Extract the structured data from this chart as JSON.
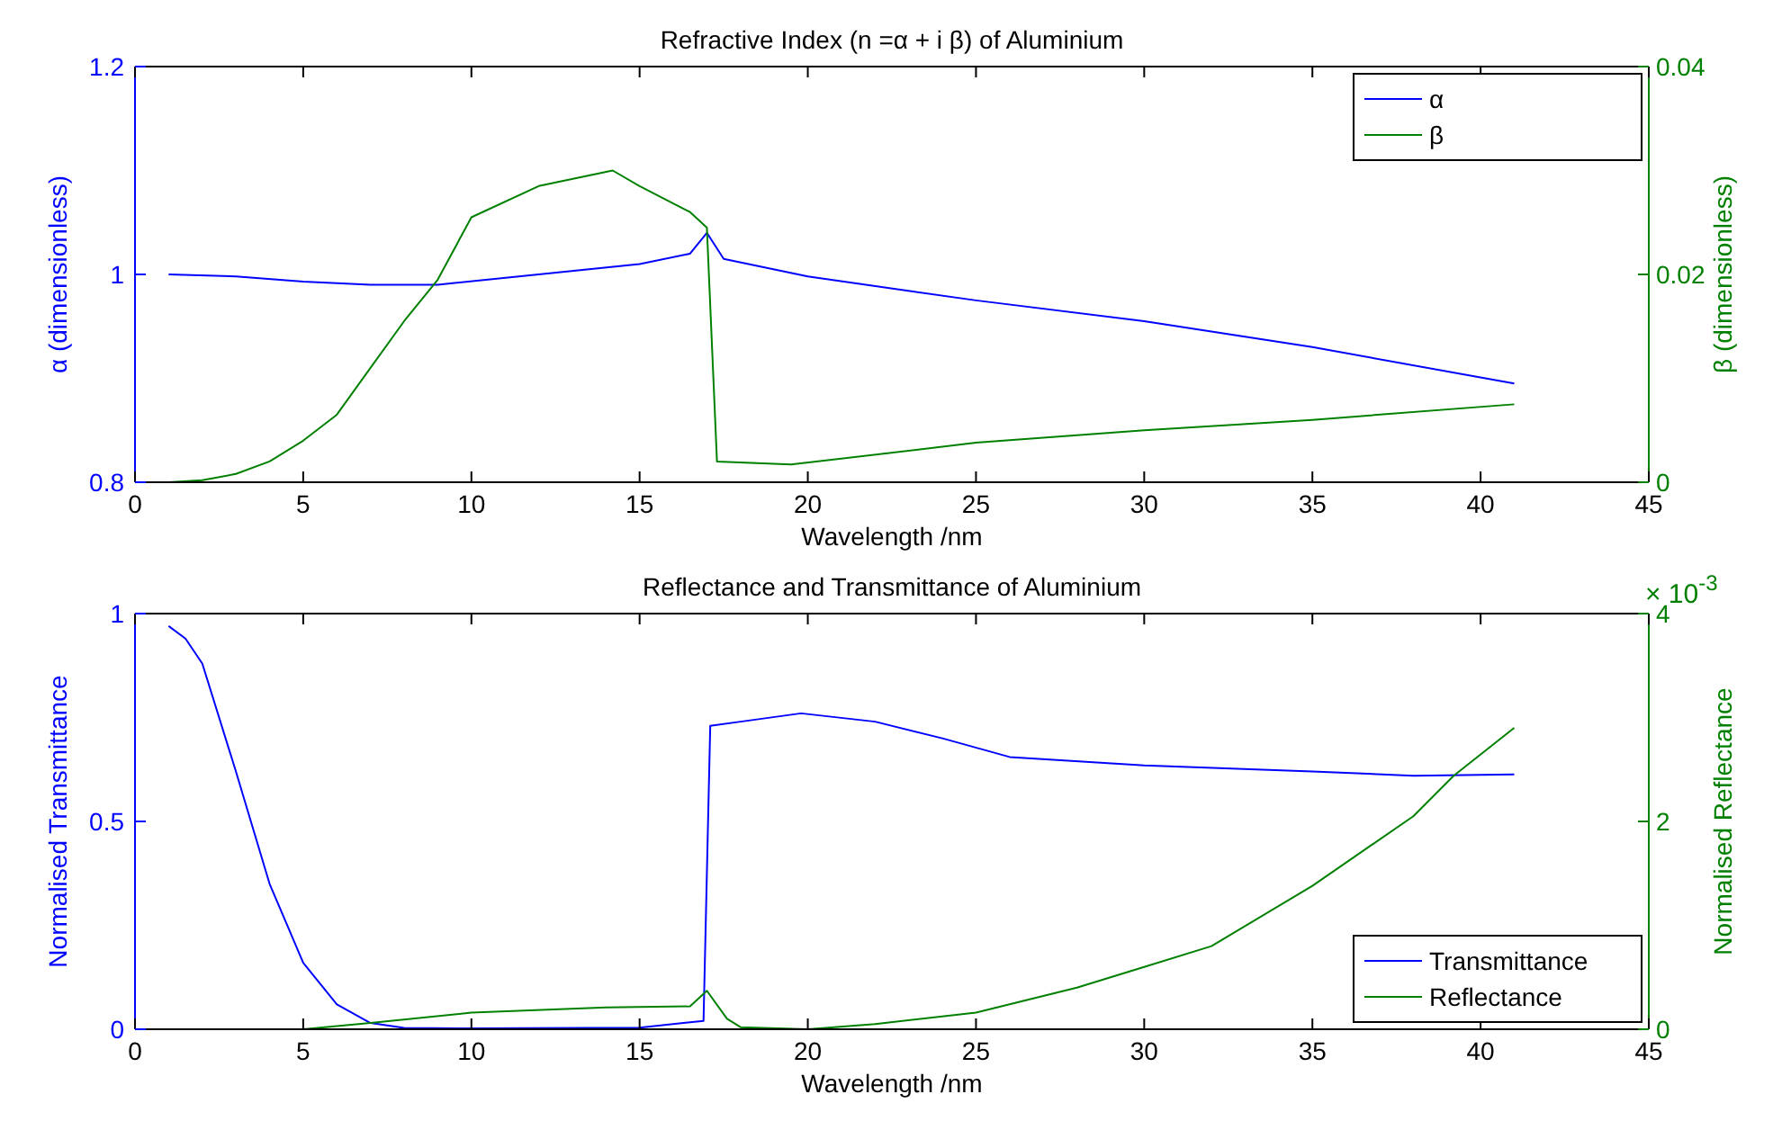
{
  "chart_data": [
    {
      "type": "line",
      "title": "Refractive Index (n =α + i β) of Aluminium",
      "xlabel": "Wavelength /nm",
      "ylabel": "α (dimensionless)",
      "y2label": "β (dimensionless)",
      "xlim": [
        0,
        45
      ],
      "xticks": [
        0,
        5,
        10,
        15,
        20,
        25,
        30,
        35,
        40,
        45
      ],
      "ylim": [
        0.8,
        1.2
      ],
      "yticks": [
        0.8,
        1,
        1.2
      ],
      "y2lim": [
        0,
        0.04
      ],
      "y2ticks": [
        0,
        0.02,
        0.04
      ],
      "legend": "top right",
      "series": [
        {
          "name": "α",
          "color": "#0000ff",
          "x": [
            1,
            3,
            5,
            7,
            9,
            12,
            15,
            16.5,
            17,
            17.5,
            20,
            25,
            30,
            35,
            41
          ],
          "values": [
            1,
            0.998,
            0.993,
            0.99,
            0.99,
            1,
            1.01,
            1.02,
            1.04,
            1.015,
            0.998,
            0.975,
            0.955,
            0.93,
            0.895
          ]
        },
        {
          "name": "β",
          "color": "#008000",
          "axis": "y2",
          "x": [
            1,
            2,
            3,
            4,
            5,
            6,
            7,
            8,
            9,
            10,
            12,
            14.2,
            15,
            16.5,
            17,
            17.3,
            19.5,
            25,
            30,
            35,
            41
          ],
          "values": [
            0,
            0.0002,
            0.0008,
            0.002,
            0.004,
            0.0065,
            0.011,
            0.0155,
            0.0195,
            0.0255,
            0.0285,
            0.03,
            0.0285,
            0.026,
            0.0245,
            0.002,
            0.0017,
            0.0038,
            0.005,
            0.006,
            0.0075
          ]
        }
      ]
    },
    {
      "type": "line",
      "title": "Reflectance and Transmittance of Aluminium",
      "xlabel": "Wavelength /nm",
      "ylabel": "Normalised Transmittance",
      "y2label": "Normalised Reflectance",
      "annotations": [
        "× 10$^{-3}$"
      ],
      "xlim": [
        0,
        45
      ],
      "xticks": [
        0,
        5,
        10,
        15,
        20,
        25,
        30,
        35,
        40,
        45
      ],
      "ylim": [
        0,
        1
      ],
      "yticks": [
        0,
        0.5,
        1
      ],
      "y2lim": [
        0,
        4
      ],
      "y2ticks": [
        0,
        2,
        4
      ],
      "legend": "bottom right",
      "series": [
        {
          "name": "Transmittance",
          "color": "#0000ff",
          "x": [
            1,
            1.5,
            2,
            3,
            4,
            5,
            6,
            7,
            8,
            10,
            15,
            16.9,
            17.1,
            18,
            19.8,
            22,
            24,
            26,
            30,
            35,
            38,
            41
          ],
          "values": [
            0.97,
            0.94,
            0.88,
            0.62,
            0.35,
            0.16,
            0.06,
            0.015,
            0.003,
            0.002,
            0.004,
            0.02,
            0.73,
            0.74,
            0.76,
            0.74,
            0.7,
            0.655,
            0.635,
            0.62,
            0.61,
            0.613
          ]
        },
        {
          "name": "Reflectance",
          "color": "#008000",
          "axis": "y2",
          "x": [
            1,
            5,
            7,
            10,
            14,
            16.5,
            17,
            17.6,
            18,
            20,
            22,
            25,
            28,
            30,
            32,
            35,
            38,
            39.2,
            41
          ],
          "values": [
            0,
            0,
            0.06,
            0.16,
            0.21,
            0.22,
            0.37,
            0.1,
            0.02,
            0,
            0.05,
            0.16,
            0.4,
            0.6,
            0.8,
            1.38,
            2.05,
            2.44,
            2.9
          ]
        }
      ]
    }
  ]
}
